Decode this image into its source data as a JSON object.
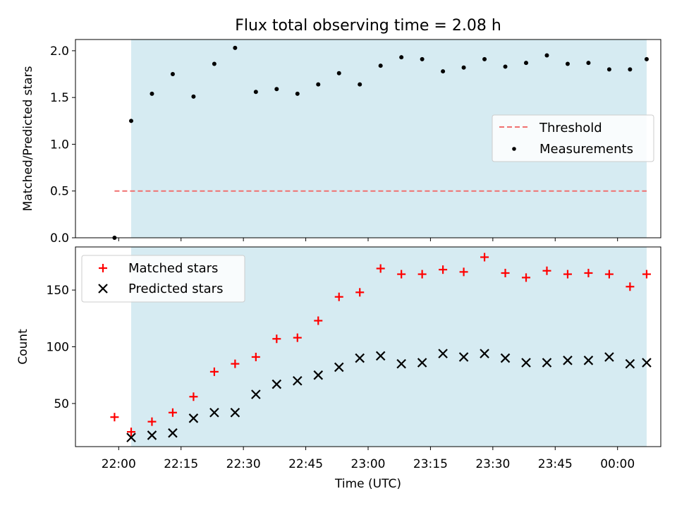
{
  "chart_data": [
    {
      "type": "scatter",
      "title": "Flux total observing time = 2.08 h",
      "ylabel": "Matched/Predicted stars",
      "ylim": [
        0,
        2.12
      ],
      "yticks": [
        0.0,
        0.5,
        1.0,
        1.5,
        2.0
      ],
      "ytick_labels": [
        "0.0",
        "0.5",
        "1.0",
        "1.5",
        "2.0"
      ],
      "shaded_region": {
        "start": "22:03",
        "end": "00:07",
        "color": "#add8e6"
      },
      "threshold": {
        "name": "Threshold",
        "value": 0.5,
        "color": "#f07070",
        "x_start": "21:59",
        "x_end": "00:07"
      },
      "series": [
        {
          "name": "Measurements",
          "marker": "dot",
          "color": "#000000",
          "x": [
            "21:59",
            "22:03",
            "22:08",
            "22:13",
            "22:18",
            "22:23",
            "22:28",
            "22:33",
            "22:38",
            "22:43",
            "22:48",
            "22:53",
            "22:58",
            "23:03",
            "23:08",
            "23:13",
            "23:18",
            "23:23",
            "23:28",
            "23:33",
            "23:38",
            "23:43",
            "23:48",
            "23:53",
            "23:58",
            "00:03",
            "00:07"
          ],
          "values": [
            0.0,
            1.25,
            1.54,
            1.75,
            1.51,
            1.86,
            2.03,
            1.56,
            1.59,
            1.54,
            1.64,
            1.76,
            1.64,
            1.84,
            1.93,
            1.91,
            1.78,
            1.82,
            1.91,
            1.83,
            1.87,
            1.95,
            1.86,
            1.87,
            1.8,
            1.8,
            1.91
          ]
        }
      ],
      "legend": {
        "position": "center-right",
        "entries": [
          "Threshold",
          "Measurements"
        ]
      }
    },
    {
      "type": "scatter",
      "xlabel": "Time (UTC)",
      "ylabel": "Count",
      "ylim": [
        12,
        188
      ],
      "yticks": [
        50,
        100,
        150
      ],
      "ytick_labels": [
        "50",
        "100",
        "150"
      ],
      "xticks": [
        "22:00",
        "22:15",
        "22:30",
        "22:45",
        "23:00",
        "23:15",
        "23:30",
        "23:45",
        "00:00"
      ],
      "shaded_region": {
        "start": "22:03",
        "end": "00:07",
        "color": "#add8e6"
      },
      "series": [
        {
          "name": "Matched stars",
          "marker": "plus",
          "color": "#ff0000",
          "x": [
            "21:59",
            "22:03",
            "22:08",
            "22:13",
            "22:18",
            "22:23",
            "22:28",
            "22:33",
            "22:38",
            "22:43",
            "22:48",
            "22:53",
            "22:58",
            "23:03",
            "23:08",
            "23:13",
            "23:18",
            "23:23",
            "23:28",
            "23:33",
            "23:38",
            "23:43",
            "23:48",
            "23:53",
            "23:58",
            "00:03",
            "00:07"
          ],
          "values": [
            38,
            25,
            34,
            42,
            56,
            78,
            85,
            91,
            107,
            108,
            123,
            144,
            148,
            169,
            164,
            164,
            168,
            166,
            179,
            165,
            161,
            167,
            164,
            165,
            164,
            153,
            164
          ]
        },
        {
          "name": "Predicted stars",
          "marker": "x",
          "color": "#000000",
          "x": [
            "22:03",
            "22:08",
            "22:13",
            "22:18",
            "22:23",
            "22:28",
            "22:33",
            "22:38",
            "22:43",
            "22:48",
            "22:53",
            "22:58",
            "23:03",
            "23:08",
            "23:13",
            "23:18",
            "23:23",
            "23:28",
            "23:33",
            "23:38",
            "23:43",
            "23:48",
            "23:53",
            "23:58",
            "00:03",
            "00:07"
          ],
          "values": [
            20,
            22,
            24,
            37,
            42,
            42,
            58,
            67,
            70,
            75,
            82,
            90,
            92,
            85,
            86,
            94,
            91,
            94,
            90,
            86,
            86,
            88,
            88,
            91,
            85,
            86
          ]
        }
      ],
      "legend": {
        "position": "top-left",
        "entries": [
          "Matched stars",
          "Predicted stars"
        ]
      }
    }
  ]
}
